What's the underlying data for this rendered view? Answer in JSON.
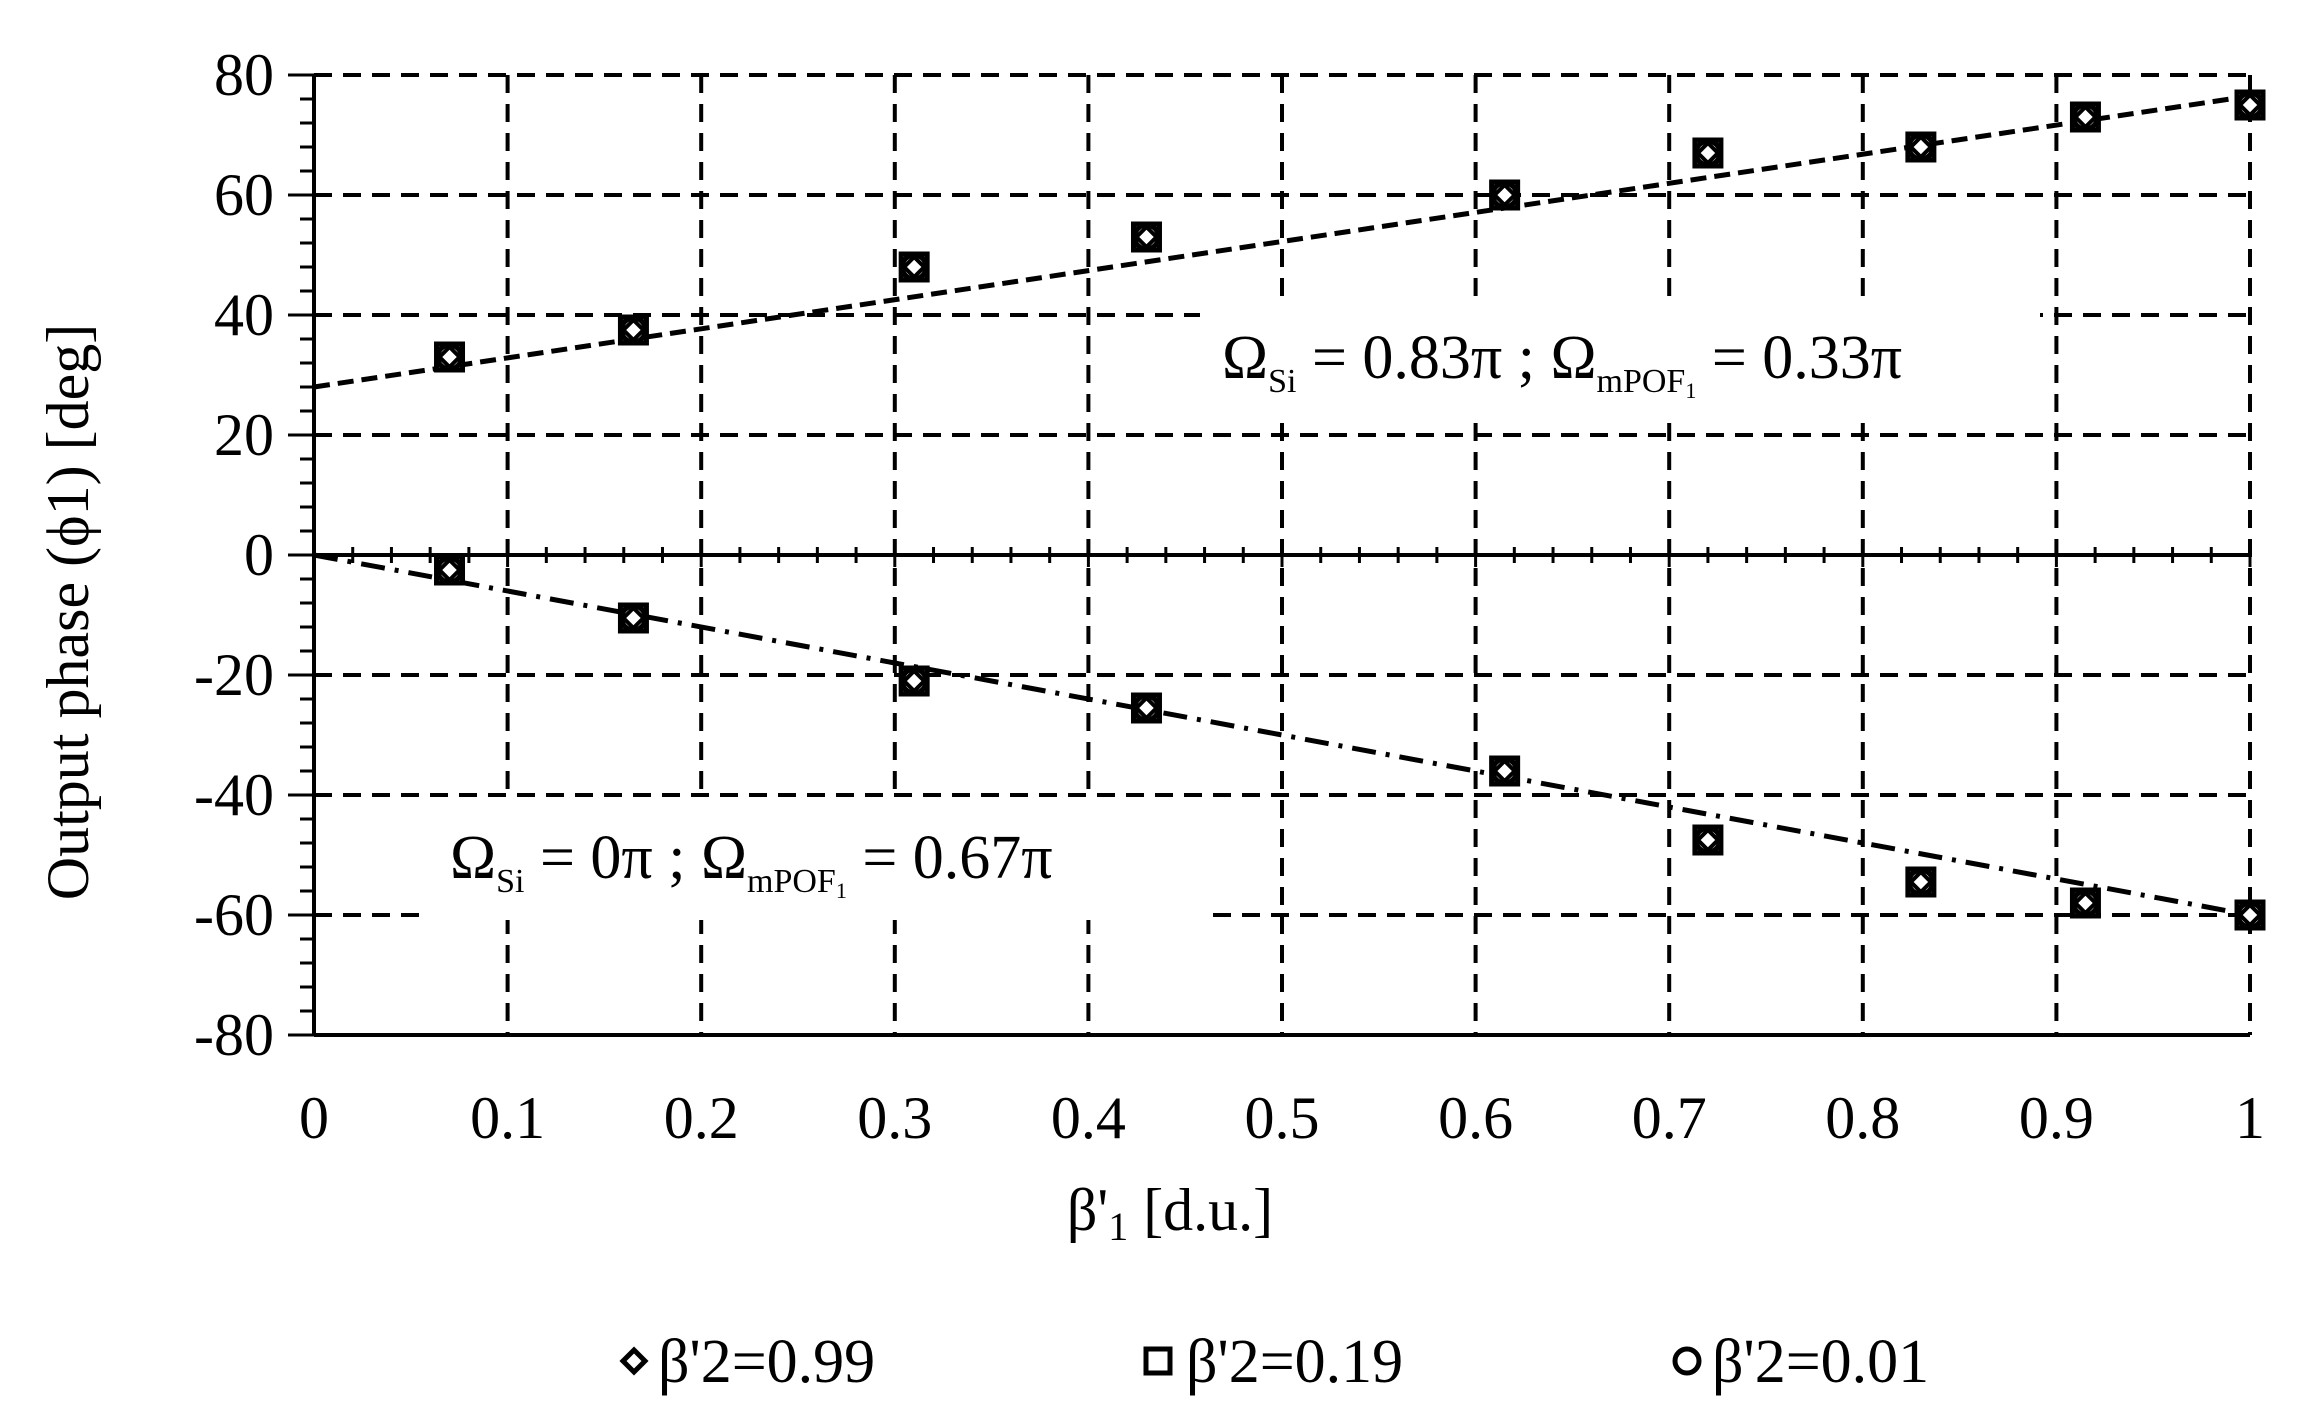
{
  "chart_data": {
    "type": "scatter",
    "xlabel": {
      "main": "β'",
      "sub": "1",
      "unit": " [d.u.]"
    },
    "ylabel": "Output phase (ϕ1) [deg]",
    "xlim": [
      0,
      1
    ],
    "ylim": [
      -80,
      80
    ],
    "x_ticks": [
      "0",
      "0.1",
      "0.2",
      "0.3",
      "0.4",
      "0.5",
      "0.6",
      "0.7",
      "0.8",
      "0.9",
      "1"
    ],
    "y_ticks": [
      "80",
      "60",
      "40",
      "20",
      "0",
      "-20",
      "-40",
      "-60",
      "-80"
    ],
    "grid": true,
    "legend_position": "bottom",
    "annotations": [
      {
        "omega_si": "Ω",
        "si_sub": "Si",
        "omega_si_val": " = 0.83π ; ",
        "omega_mpof": "Ω",
        "mpof_sub": "mPOF",
        "mpof_subsub": "1",
        "omega_mpof_val": " = 0.33π"
      },
      {
        "omega_si": "Ω",
        "si_sub": "Si",
        "omega_si_val": " = 0π ; ",
        "omega_mpof": "Ω",
        "mpof_sub": "mPOF",
        "mpof_subsub": "1",
        "omega_mpof_val": " = 0.67π"
      }
    ],
    "series": [
      {
        "name": "β'2=0.99",
        "marker": "diamond"
      },
      {
        "name": "β'2=0.19",
        "marker": "square"
      },
      {
        "name": "β'2=0.01",
        "marker": "circle"
      }
    ],
    "x": [
      0.07,
      0.165,
      0.31,
      0.43,
      0.615,
      0.72,
      0.83,
      0.915,
      1.0
    ],
    "upper_values": [
      33,
      37.5,
      48,
      53,
      60,
      67,
      68,
      73,
      75
    ],
    "lower_values": [
      -2.5,
      -10.5,
      -21,
      -25.5,
      -36,
      -47.5,
      -54.5,
      -58,
      -60
    ],
    "upper_trendline": {
      "style": "dashed",
      "x": [
        0,
        1
      ],
      "y": [
        28,
        76.5
      ]
    },
    "lower_trendline": {
      "style": "dash-dot",
      "x": [
        0,
        1
      ],
      "y": [
        0,
        -60
      ]
    }
  }
}
